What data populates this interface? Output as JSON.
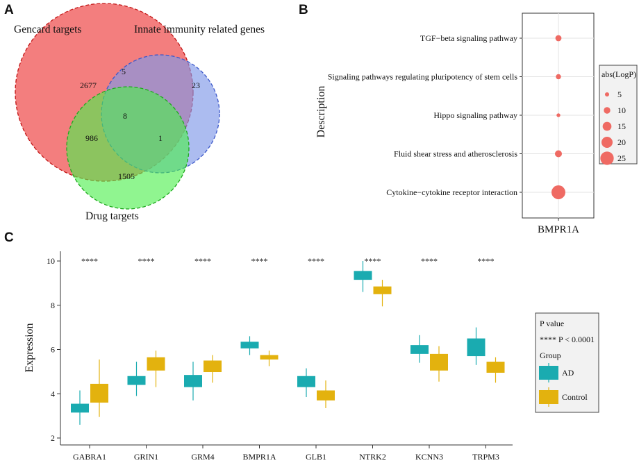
{
  "panels": {
    "a": "A",
    "b": "B",
    "c": "C"
  },
  "venn": {
    "sets": [
      {
        "name": "Gencard targets",
        "color": "#f05a5a",
        "stroke": "#c11515"
      },
      {
        "name": "Innate immunity related genes",
        "color": "#7f98e8",
        "stroke": "#3b57c9"
      },
      {
        "name": "Drug targets",
        "color": "#4cef4c",
        "stroke": "#1fa81f"
      }
    ],
    "counts": {
      "gencard_only": "2677",
      "gencard_innate": "5",
      "innate_only": "23",
      "all_three": "8",
      "gencard_drug": "986",
      "innate_drug": "1",
      "drug_only": "1505"
    }
  },
  "chart_data": [
    {
      "type": "scatter",
      "panel": "B",
      "title": "",
      "xlabel": "BMPR1A",
      "ylabel": "Description",
      "categories": [
        "TGF−beta signaling pathway",
        "Signaling pathways regulating pluripotency of stem cells",
        "Hippo signaling pathway",
        "Fluid shear stress and atherosclerosis",
        "Cytokine−cytokine receptor interaction"
      ],
      "x_category": "BMPR1A",
      "abs_logp": [
        9,
        7,
        4,
        11,
        26
      ],
      "point_color": "#ef6a63",
      "legend": {
        "title": "abs(LogP)",
        "entries": [
          5,
          10,
          15,
          20,
          25
        ],
        "placement": "right"
      }
    },
    {
      "type": "box",
      "panel": "C",
      "title": "",
      "xlabel": "",
      "ylabel": "Expression",
      "ylim": [
        1.6,
        10.3
      ],
      "yticks": [
        2,
        4,
        6,
        8,
        10
      ],
      "categories": [
        "GABRA1",
        "GRIN1",
        "GRM4",
        "BMPR1A",
        "GLB1",
        "NTRK2",
        "KCNN3",
        "TRPM3"
      ],
      "significance": [
        "****",
        "****",
        "****",
        "****",
        "****",
        "****",
        "****",
        "****"
      ],
      "series": [
        {
          "name": "AD",
          "color": "#1aabb0",
          "boxes": [
            {
              "min": 2.6,
              "q1": 3.15,
              "median": 3.35,
              "q3": 3.55,
              "max": 4.15
            },
            {
              "min": 3.9,
              "q1": 4.4,
              "median": 4.6,
              "q3": 4.8,
              "max": 5.45
            },
            {
              "min": 3.7,
              "q1": 4.3,
              "median": 4.55,
              "q3": 4.85,
              "max": 5.45
            },
            {
              "min": 5.75,
              "q1": 6.05,
              "median": 6.2,
              "q3": 6.35,
              "max": 6.6
            },
            {
              "min": 3.85,
              "q1": 4.3,
              "median": 4.55,
              "q3": 4.8,
              "max": 5.15
            },
            {
              "min": 8.6,
              "q1": 9.15,
              "median": 9.35,
              "q3": 9.55,
              "max": 10.0
            },
            {
              "min": 5.4,
              "q1": 5.8,
              "median": 6.0,
              "q3": 6.2,
              "max": 6.65
            },
            {
              "min": 5.3,
              "q1": 5.7,
              "median": 6.1,
              "q3": 6.5,
              "max": 7.0
            }
          ]
        },
        {
          "name": "Control",
          "color": "#e3b20e",
          "boxes": [
            {
              "min": 2.95,
              "q1": 3.6,
              "median": 4.05,
              "q3": 4.45,
              "max": 5.55
            },
            {
              "min": 4.3,
              "q1": 5.05,
              "median": 5.35,
              "q3": 5.65,
              "max": 5.95
            },
            {
              "min": 4.5,
              "q1": 4.98,
              "median": 5.2,
              "q3": 5.5,
              "max": 5.75
            },
            {
              "min": 5.25,
              "q1": 5.55,
              "median": 5.65,
              "q3": 5.75,
              "max": 5.95
            },
            {
              "min": 3.35,
              "q1": 3.7,
              "median": 3.85,
              "q3": 4.15,
              "max": 4.6
            },
            {
              "min": 7.95,
              "q1": 8.5,
              "median": 8.65,
              "q3": 8.85,
              "max": 9.15
            },
            {
              "min": 4.55,
              "q1": 5.05,
              "median": 5.45,
              "q3": 5.8,
              "max": 6.15
            },
            {
              "min": 4.5,
              "q1": 4.95,
              "median": 5.2,
              "q3": 5.45,
              "max": 5.65
            }
          ]
        }
      ],
      "legend": {
        "pvalue_title": "P value",
        "pvalue_entry": "**** P < 0.0001",
        "group_title": "Group",
        "groups": [
          "AD",
          "Control"
        ],
        "placement": "right"
      }
    }
  ]
}
